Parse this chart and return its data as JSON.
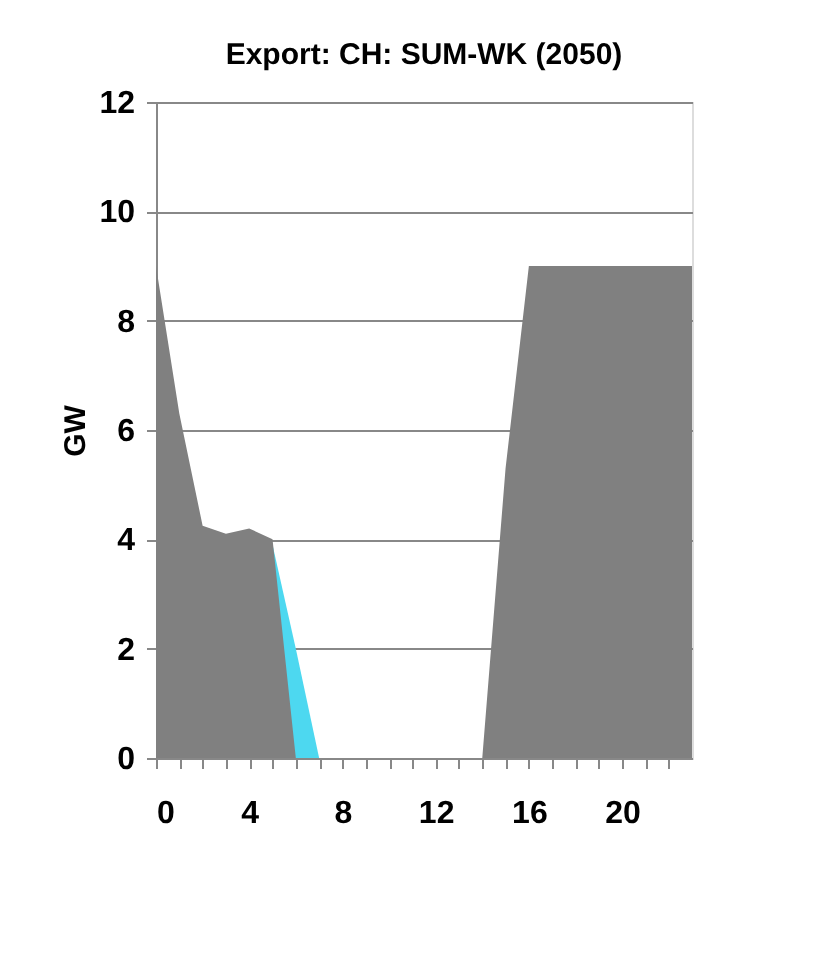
{
  "chart_data": {
    "type": "area",
    "title": "Export: CH: SUM-WK (2050)",
    "ylabel": "GW",
    "series": [
      {
        "color": "#808080",
        "x": [
          0,
          1,
          2,
          3,
          4,
          5,
          6,
          7,
          8,
          9,
          10,
          11,
          12,
          13,
          14,
          15,
          16,
          17,
          18,
          19,
          20,
          21,
          22,
          23
        ],
        "values": [
          9,
          6.3,
          4.25,
          4.1,
          4.2,
          4.0,
          0,
          0,
          0,
          0,
          0,
          0,
          0,
          0,
          0,
          5.3,
          9,
          9,
          9,
          9,
          9,
          9,
          9,
          9
        ]
      },
      {
        "color": "#4dd8f0",
        "x": [
          5,
          6,
          7
        ],
        "values": [
          3.9,
          2,
          0
        ]
      }
    ],
    "xlim": [
      0,
      23
    ],
    "xticks": [
      0,
      {
        "value": 1,
        "label": null
      },
      {
        "value": 2,
        "label": null
      },
      {
        "value": 3,
        "label": null
      },
      4,
      {
        "value": 5,
        "label": null
      },
      {
        "value": 6,
        "label": null
      },
      {
        "value": 7,
        "label": null
      },
      8,
      {
        "value": 9,
        "label": null
      },
      {
        "value": 10,
        "label": null
      },
      {
        "value": 11,
        "label": null
      },
      12,
      {
        "value": 13,
        "label": null
      },
      {
        "value": 14,
        "label": null
      },
      {
        "value": 15,
        "label": null
      },
      16,
      {
        "value": 17,
        "label": null
      },
      {
        "value": 18,
        "label": null
      },
      {
        "value": 19,
        "label": null
      },
      20,
      {
        "value": 21,
        "label": null
      },
      {
        "value": 22,
        "label": null
      }
    ],
    "ylim": [
      0,
      12
    ],
    "yticks": [
      0,
      2,
      4,
      6,
      8,
      10,
      12
    ],
    "grid": "y",
    "legend": false
  }
}
